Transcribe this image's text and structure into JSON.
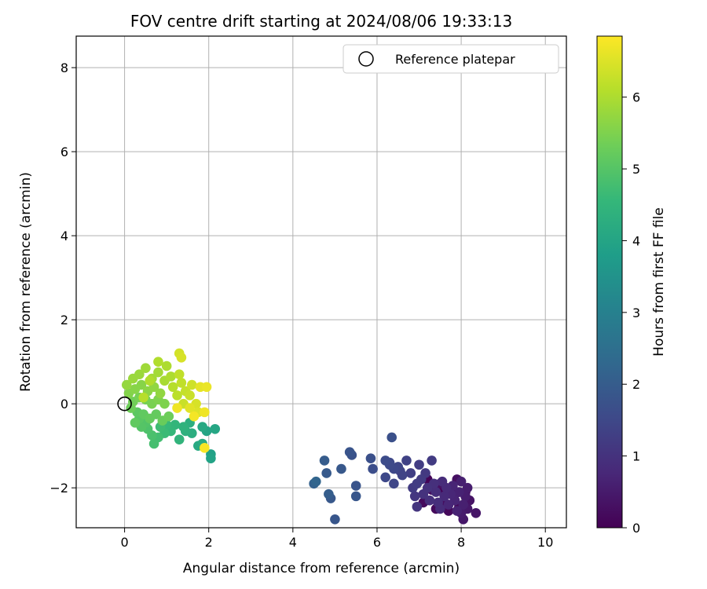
{
  "chart_data": {
    "type": "scatter",
    "title": "FOV centre drift starting at 2024/08/06 19:33:13",
    "xlabel": "Angular distance from reference (arcmin)",
    "ylabel": "Rotation from reference (arcmin)",
    "xlim": [
      -1.15,
      10.5
    ],
    "ylim": [
      -2.95,
      8.75
    ],
    "xticks": [
      0,
      2,
      4,
      6,
      8,
      10
    ],
    "yticks": [
      -2,
      0,
      2,
      4,
      6,
      8
    ],
    "xtick_labels": [
      "0",
      "2",
      "4",
      "6",
      "8",
      "10"
    ],
    "ytick_labels": [
      "−2",
      "0",
      "2",
      "4",
      "6",
      "8"
    ],
    "grid": true,
    "legend": {
      "position": "top-right",
      "entries": [
        "Reference platepar"
      ]
    },
    "reference_point": {
      "x": 0,
      "y": 0
    },
    "colorbar": {
      "label": "Hours from first FF file",
      "range": [
        0,
        6.85
      ],
      "ticks": [
        0,
        1,
        2,
        3,
        4,
        5,
        6
      ],
      "tick_labels": [
        "0",
        "1",
        "2",
        "3",
        "4",
        "5",
        "6"
      ],
      "colormap": "viridis",
      "colors": [
        "#440154",
        "#482878",
        "#3e4989",
        "#31688e",
        "#26828e",
        "#1f9e89",
        "#35b779",
        "#6ece58",
        "#b5de2b",
        "#fde725"
      ]
    },
    "series": [
      {
        "points": [
          [
            4.5,
            -1.9,
            2.1
          ],
          [
            4.55,
            -1.85,
            2.2
          ],
          [
            4.75,
            -1.35,
            2.0
          ],
          [
            4.8,
            -1.65,
            1.95
          ],
          [
            4.85,
            -2.15,
            2.05
          ],
          [
            4.9,
            -2.25,
            1.9
          ],
          [
            5.0,
            -2.75,
            1.85
          ],
          [
            5.15,
            -1.55,
            1.9
          ],
          [
            5.35,
            -1.15,
            1.8
          ],
          [
            5.4,
            -1.22,
            1.75
          ],
          [
            5.5,
            -1.95,
            1.8
          ],
          [
            5.5,
            -2.2,
            1.85
          ],
          [
            5.85,
            -1.3,
            1.7
          ],
          [
            5.9,
            -1.55,
            1.65
          ],
          [
            6.35,
            -0.8,
            1.7
          ],
          [
            6.2,
            -1.35,
            1.6
          ],
          [
            6.3,
            -1.45,
            1.55
          ],
          [
            6.4,
            -1.55,
            1.5
          ],
          [
            6.2,
            -1.75,
            1.5
          ],
          [
            6.4,
            -1.9,
            1.45
          ],
          [
            6.55,
            -1.6,
            1.4
          ],
          [
            6.6,
            -1.7,
            1.4
          ],
          [
            6.5,
            -1.5,
            1.45
          ],
          [
            6.3,
            -1.4,
            1.5
          ],
          [
            6.7,
            -1.35,
            1.35
          ],
          [
            6.8,
            -1.65,
            1.3
          ],
          [
            6.95,
            -1.9,
            1.25
          ],
          [
            6.85,
            -2.0,
            1.2
          ],
          [
            7.0,
            -1.45,
            1.25
          ],
          [
            7.05,
            -1.8,
            1.2
          ],
          [
            7.3,
            -1.35,
            1.2
          ],
          [
            7.15,
            -1.65,
            1.15
          ],
          [
            6.9,
            -2.2,
            1.1
          ],
          [
            6.95,
            -2.45,
            1.05
          ],
          [
            7.1,
            -2.15,
            1.0
          ],
          [
            7.2,
            -2.0,
            1.0
          ],
          [
            7.25,
            -2.3,
            0.95
          ],
          [
            7.35,
            -1.9,
            0.95
          ],
          [
            7.4,
            -2.1,
            0.9
          ],
          [
            7.45,
            -2.35,
            0.9
          ],
          [
            7.5,
            -2.5,
            0.85
          ],
          [
            7.55,
            -1.85,
            0.85
          ],
          [
            7.6,
            -2.2,
            0.8
          ],
          [
            7.65,
            -2.0,
            0.8
          ],
          [
            7.7,
            -2.4,
            0.75
          ],
          [
            7.75,
            -2.15,
            0.75
          ],
          [
            7.8,
            -1.95,
            0.7
          ],
          [
            7.85,
            -2.3,
            0.7
          ],
          [
            7.9,
            -2.55,
            0.65
          ],
          [
            7.95,
            -2.1,
            0.65
          ],
          [
            8.0,
            -1.85,
            0.6
          ],
          [
            8.05,
            -2.4,
            0.6
          ],
          [
            8.1,
            -2.2,
            0.55
          ],
          [
            8.15,
            -2.0,
            0.55
          ],
          [
            8.0,
            -2.6,
            0.5
          ],
          [
            8.05,
            -2.75,
            0.45
          ],
          [
            8.15,
            -2.5,
            0.45
          ],
          [
            8.35,
            -2.6,
            0.4
          ],
          [
            8.2,
            -2.3,
            0.35
          ],
          [
            7.9,
            -1.8,
            0.3
          ],
          [
            7.5,
            -1.9,
            0.3
          ],
          [
            7.3,
            -2.05,
            0.25
          ],
          [
            7.6,
            -2.35,
            0.25
          ],
          [
            7.85,
            -2.15,
            0.2
          ],
          [
            7.1,
            -2.35,
            0.2
          ],
          [
            7.4,
            -2.5,
            0.15
          ],
          [
            7.7,
            -2.55,
            0.15
          ],
          [
            7.95,
            -2.45,
            0.1
          ],
          [
            8.1,
            -2.1,
            0.1
          ],
          [
            7.2,
            -1.8,
            0.05
          ],
          [
            7.55,
            -2.05,
            0.05
          ],
          [
            1.85,
            -0.55,
            4.1
          ],
          [
            2.05,
            -1.2,
            3.9
          ],
          [
            2.05,
            -1.3,
            3.95
          ],
          [
            1.95,
            -0.65,
            4.0
          ],
          [
            2.15,
            -0.6,
            4.05
          ],
          [
            1.75,
            -1.0,
            4.15
          ],
          [
            1.85,
            -0.95,
            4.2
          ],
          [
            1.6,
            -0.7,
            4.25
          ],
          [
            1.55,
            -0.45,
            4.3
          ],
          [
            1.45,
            -0.65,
            4.35
          ],
          [
            1.4,
            -0.55,
            4.4
          ],
          [
            1.3,
            -0.85,
            4.45
          ],
          [
            1.2,
            -0.5,
            4.5
          ],
          [
            1.1,
            -0.65,
            4.55
          ],
          [
            1.0,
            -0.5,
            4.6
          ],
          [
            0.95,
            -0.7,
            4.65
          ],
          [
            0.85,
            -0.55,
            4.7
          ],
          [
            0.8,
            -0.8,
            4.75
          ],
          [
            0.7,
            -0.95,
            4.8
          ],
          [
            0.65,
            -0.75,
            4.85
          ],
          [
            0.55,
            -0.6,
            4.9
          ],
          [
            0.5,
            -0.45,
            4.95
          ],
          [
            0.4,
            -0.55,
            5.0
          ],
          [
            0.35,
            -0.35,
            5.05
          ],
          [
            0.3,
            -0.2,
            5.1
          ],
          [
            0.25,
            -0.45,
            5.15
          ],
          [
            0.45,
            -0.25,
            5.15
          ],
          [
            0.6,
            -0.35,
            5.2
          ],
          [
            0.75,
            -0.25,
            5.2
          ],
          [
            0.9,
            -0.4,
            5.25
          ],
          [
            1.05,
            -0.3,
            5.3
          ],
          [
            0.15,
            -0.1,
            5.3
          ],
          [
            0.2,
            0.05,
            5.35
          ],
          [
            0.35,
            0.15,
            5.4
          ],
          [
            0.5,
            0.1,
            5.4
          ],
          [
            0.65,
            0.0,
            5.45
          ],
          [
            0.8,
            0.1,
            5.5
          ],
          [
            0.95,
            0.0,
            5.5
          ],
          [
            0.1,
            0.25,
            5.55
          ],
          [
            0.25,
            0.35,
            5.6
          ],
          [
            0.4,
            0.45,
            5.6
          ],
          [
            0.55,
            0.3,
            5.65
          ],
          [
            0.7,
            0.4,
            5.7
          ],
          [
            0.85,
            0.25,
            5.7
          ],
          [
            0.05,
            0.45,
            5.75
          ],
          [
            0.2,
            0.6,
            5.8
          ],
          [
            0.35,
            0.7,
            5.8
          ],
          [
            0.5,
            0.85,
            5.85
          ],
          [
            0.65,
            0.6,
            5.9
          ],
          [
            0.8,
            0.75,
            5.9
          ],
          [
            0.95,
            0.55,
            5.95
          ],
          [
            1.1,
            0.65,
            6.0
          ],
          [
            1.0,
            0.9,
            6.0
          ],
          [
            0.8,
            1.0,
            6.05
          ],
          [
            0.6,
            0.55,
            6.05
          ],
          [
            0.45,
            0.15,
            6.1
          ],
          [
            1.15,
            0.4,
            6.1
          ],
          [
            1.25,
            0.2,
            6.15
          ],
          [
            1.35,
            0.5,
            6.2
          ],
          [
            1.3,
            0.7,
            6.2
          ],
          [
            1.45,
            0.3,
            6.25
          ],
          [
            1.4,
            0.0,
            6.3
          ],
          [
            1.55,
            0.2,
            6.3
          ],
          [
            1.6,
            0.45,
            6.35
          ],
          [
            1.3,
            1.2,
            6.4
          ],
          [
            1.35,
            1.1,
            6.45
          ],
          [
            1.7,
            0.0,
            6.45
          ],
          [
            1.75,
            -0.2,
            6.5
          ],
          [
            1.55,
            -0.1,
            6.55
          ],
          [
            1.8,
            0.4,
            6.6
          ],
          [
            1.95,
            0.4,
            6.65
          ],
          [
            1.9,
            -0.2,
            6.7
          ],
          [
            1.9,
            -1.05,
            6.8
          ],
          [
            1.65,
            -0.3,
            6.75
          ],
          [
            1.25,
            -0.1,
            6.7
          ]
        ]
      }
    ]
  }
}
